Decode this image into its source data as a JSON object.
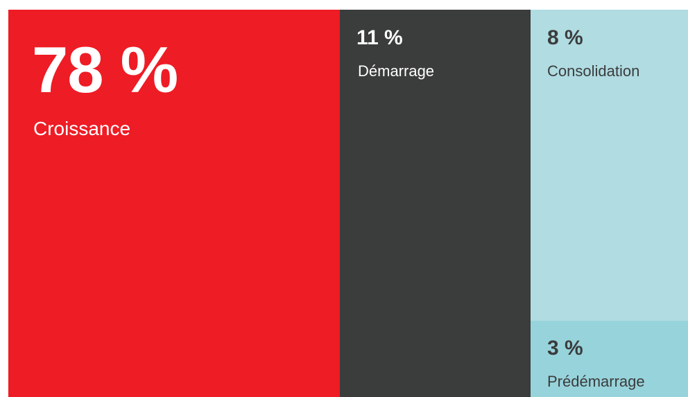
{
  "chart_data": {
    "type": "treemap",
    "title": "",
    "segments": [
      {
        "label": "Croissance",
        "value": 78,
        "value_text": "78 %",
        "color": "#ee1c25",
        "text_color": "#ffffff"
      },
      {
        "label": "Démarrage",
        "value": 11,
        "value_text": "11 %",
        "color": "#3b3c3c",
        "text_color": "#ffffff"
      },
      {
        "label": "Consolidation",
        "value": 8,
        "value_text": "8 %",
        "color": "#b0dce2",
        "text_color": "#3b3c3c"
      },
      {
        "label": "Prédémarrage",
        "value": 3,
        "value_text": "3 %",
        "color": "#97d3db",
        "text_color": "#3b3c3c"
      }
    ]
  }
}
